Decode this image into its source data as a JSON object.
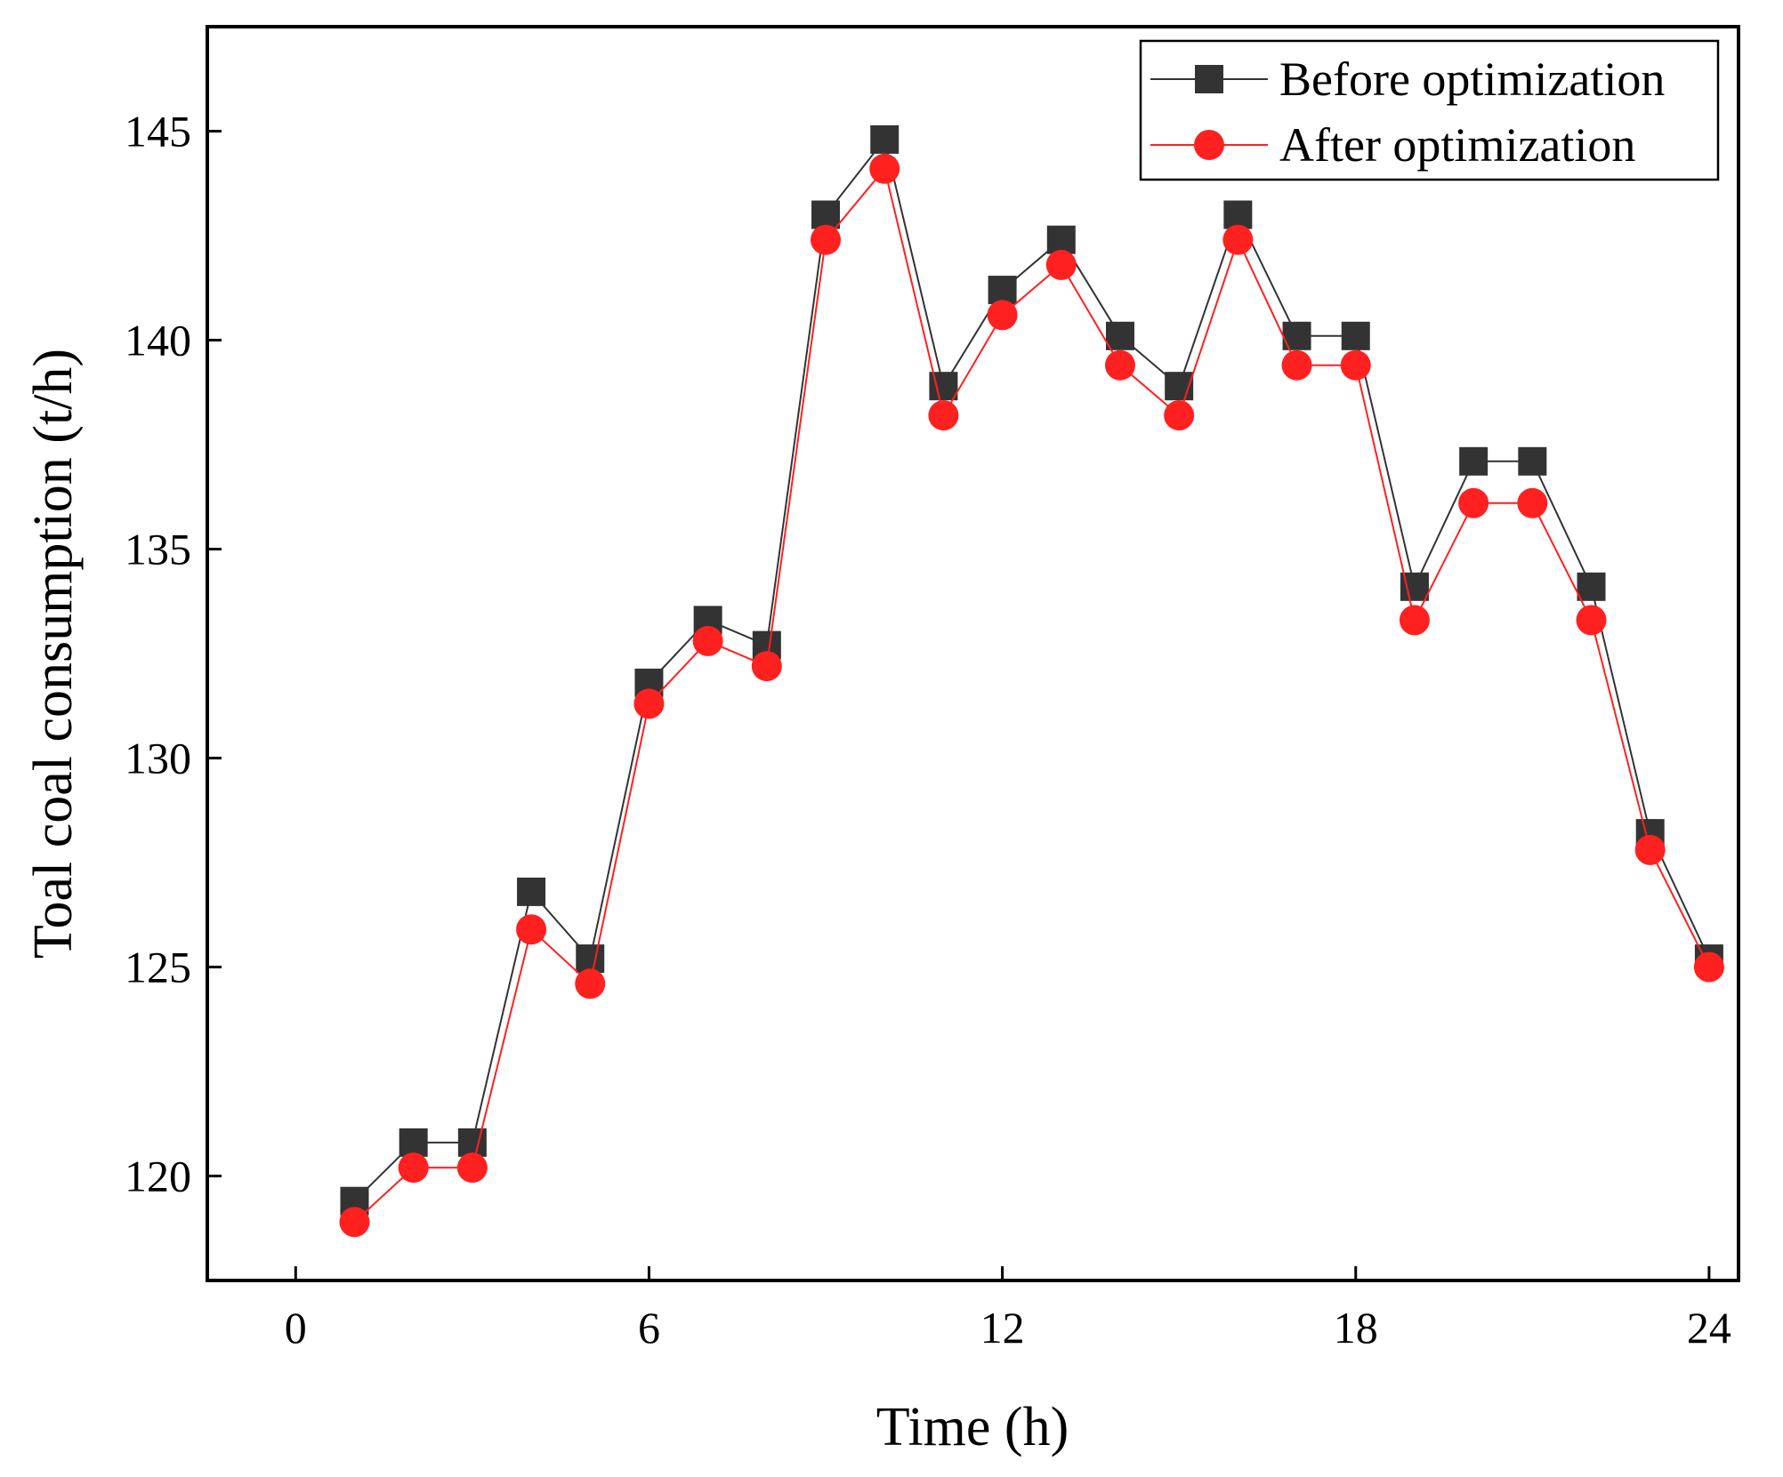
{
  "chart_data": {
    "type": "line",
    "title": "",
    "xlabel": "Time (h)",
    "ylabel": "Toal coal consumption (t/h)",
    "xlim": [
      -1.5,
      24.5
    ],
    "ylim": [
      117.5,
      147.5
    ],
    "xticks": [
      0,
      6,
      12,
      18,
      24
    ],
    "yticks": [
      120,
      125,
      130,
      135,
      140,
      145
    ],
    "grid": false,
    "legend_position": "top-right",
    "x": [
      1,
      2,
      3,
      4,
      5,
      6,
      7,
      8,
      9,
      10,
      11,
      12,
      13,
      14,
      15,
      16,
      17,
      18,
      19,
      20,
      21,
      22,
      23,
      24
    ],
    "series": [
      {
        "name": "Before optimization",
        "color": "#333333",
        "marker": "square",
        "values": [
          119.4,
          120.8,
          120.8,
          126.8,
          125.2,
          131.8,
          133.3,
          132.7,
          143.0,
          144.8,
          138.9,
          141.2,
          142.4,
          140.1,
          138.9,
          143.0,
          140.1,
          140.1,
          134.1,
          137.1,
          137.1,
          134.1,
          128.2,
          125.2
        ]
      },
      {
        "name": "After optimization",
        "color": "#ff2020",
        "marker": "circle",
        "values": [
          118.9,
          120.2,
          120.2,
          125.9,
          124.6,
          131.3,
          132.8,
          132.2,
          142.4,
          144.1,
          138.2,
          140.6,
          141.8,
          139.4,
          138.2,
          142.4,
          139.4,
          139.4,
          133.3,
          136.1,
          136.1,
          133.3,
          127.8,
          125.0
        ]
      }
    ]
  }
}
